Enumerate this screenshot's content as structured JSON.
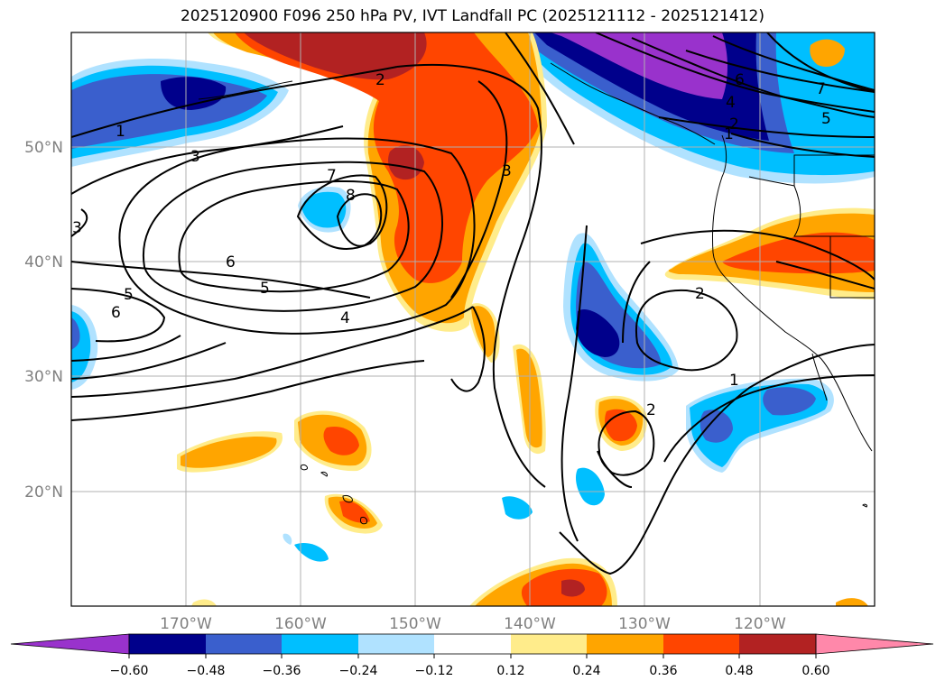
{
  "title": "2025120900 F096 250 hPa PV, IVT Landfall PC (2025121112 - 2025121412)",
  "lat_ticks": [
    "50°N",
    "40°N",
    "30°N",
    "20°N"
  ],
  "lon_ticks": [
    "170°W",
    "160°W",
    "150°W",
    "140°W",
    "130°W",
    "120°W"
  ],
  "colorbar": {
    "ticks": [
      "−0.60",
      "−0.48",
      "−0.36",
      "−0.24",
      "−0.12",
      "0.12",
      "0.24",
      "0.36",
      "0.48",
      "0.60"
    ],
    "colors": [
      "#9932cc",
      "#00008b",
      "#3a5fcd",
      "#00bfff",
      "#b0e2ff",
      "#ffffff",
      "#ffec8b",
      "#ffa500",
      "#ff4500",
      "#b22222",
      "#ff88aa"
    ]
  },
  "contour_labels": [
    "1",
    "2",
    "3",
    "4",
    "5",
    "6",
    "7",
    "8",
    "3",
    "6",
    "7",
    "5",
    "4",
    "2",
    "1",
    "2",
    "1",
    "3",
    "5",
    "6",
    "2"
  ]
}
